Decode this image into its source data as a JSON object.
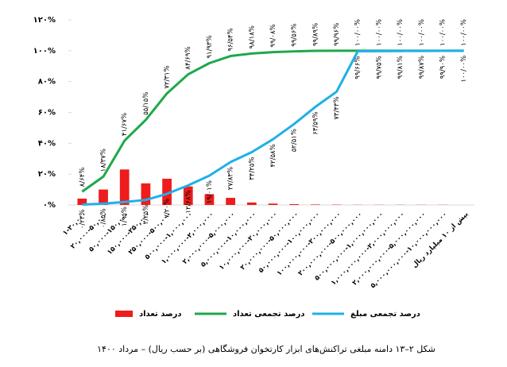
{
  "chart_data": {
    "type": "combo",
    "title": "شکل ۲–۱۳ دامنه مبلغی تراکنش‌های ابزار کارتخوان فروشگاهی (بر حسب ریال) – مرداد ۱۴۰۰",
    "categories": [
      "۱-۲۰,۰۰۰",
      "۲۰,۰۰۰-۵۰,۰۰۰",
      "۵۰,۰۰۰-۱۵۰,۰۰۰",
      "۱۵۰,۰۰۰-۲۵۰,۰۰۰",
      "۲۵۰,۰۰۰-۵۰۰,۰۰۰",
      "۵۰۰,۰۰۰-۱,۰۰۰,۰۰۰",
      "۱,۰۰۰,۰۰۰-۲,۰۰۰,۰۰۰",
      "۲,۰۰۰,۰۰۰-۵,۰۰۰,۰۰۰",
      "۵,۰۰۰,۰۰۰-۱۰,۰۰۰,۰۰۰",
      "۱۰,۰۰۰,۰۰۰-۲۰,۰۰۰,۰۰۰",
      "۲۰,۰۰۰,۰۰۰-۵۰,۰۰۰,۰۰۰",
      "۵۰,۰۰۰,۰۰۰-۱۰۰,۰۰۰,۰۰۰",
      "۱۰۰,۰۰۰,۰۰۰-۲۰۰,۰۰۰,۰۰۰",
      "۲۰۰,۰۰۰,۰۰۰-۵۰۰,۰۰۰,۰۰۰",
      "۵۰۰,۰۰۰,۰۰۰-۱,۰۰۰,۰۰۰,۰۰۰",
      "۱,۰۰۰,۰۰۰,۰۰۰-۲,۰۰۰,۰۰۰,۰۰۰",
      "۲,۰۰۰,۰۰۰,۰۰۰-۵,۰۰۰,۰۰۰,۰۰۰",
      "۵,۰۰۰,۰۰۰,۰۰۰-۱۰,۰۰۰,۰۰۰,۰۰۰",
      "بیش از ۱۰ میلیارد ریال"
    ],
    "ylim": [
      0,
      120
    ],
    "yticks": [
      {
        "value": 0,
        "label": "۰%"
      },
      {
        "value": 20,
        "label": "۲۰%"
      },
      {
        "value": 40,
        "label": "۴۰%"
      },
      {
        "value": 60,
        "label": "۶۰%"
      },
      {
        "value": 80,
        "label": "۸۰%"
      },
      {
        "value": 100,
        "label": "۱۰۰%"
      },
      {
        "value": 120,
        "label": "۱۲۰%"
      }
    ],
    "series": [
      {
        "name": "درصد تعداد",
        "type": "bar",
        "color": "#ee1c1c",
        "values": [
          4.1,
          10,
          23,
          14,
          17,
          12,
          7,
          4.6,
          1.6,
          0.9,
          0.5,
          0.3,
          0.2,
          0.1,
          0.1,
          0.1,
          0.1,
          0.1,
          0
        ]
      },
      {
        "name": "درصد تجمعی تعداد",
        "type": "line",
        "color": "#1ea84a",
        "values": [
          8.64,
          18.37,
          41.67,
          55.15,
          72.31,
          84.69,
          91.93,
          96.54,
          98.18,
          99.08,
          99.56,
          99.89,
          99.96,
          100,
          100,
          100,
          100,
          100,
          100
        ],
        "value_labels": [
          "۸/۶۴%",
          "۱۸/۳۷%",
          "۴۱/۶۷%",
          "۵۵/۱۵%",
          "۷۲/۳۱%",
          "۸۴/۶۹%",
          "۹۱/۹۳%",
          "۹۶/۵۴%",
          "۹۸/۱۸%",
          "۹۹/۰۸%",
          "۹۹/۵۶%",
          "۹۹/۸۹%",
          "۹۹/۹۶%",
          "۱۰۰/۰۰%",
          "۱۰۰/۰۰%",
          "۱۰۰/۰۰%",
          "۱۰۰/۰۰%",
          "۱۰۰/۰۰%",
          "۱۰۰/۰۰%"
        ]
      },
      {
        "name": "درصد تجمعی مبلغ",
        "type": "line",
        "color": "#1fb0e8",
        "values": [
          0.23,
          0.85,
          1.95,
          3.25,
          7.2,
          12.68,
          19.01,
          27.83,
          34.25,
          42.58,
          52.51,
          63.59,
          73.43,
          99.66,
          99.75,
          99.81,
          99.87,
          99.9,
          100
        ],
        "value_labels": [
          "۰/۲۳%",
          "۰/۸۵%",
          "۱/۹۵%",
          "۳/۲۵%",
          "۷/۲۰%",
          "۱۲/۶۸%",
          "۱۹/۰۱%",
          "۲۷/۸۳%",
          "۳۴/۲۵%",
          "۴۲/۵۸%",
          "۵۲/۵۱%",
          "۶۳/۵۹%",
          "۷۳/۴۳%",
          "۹۹/۶۶%",
          "۹۹/۷۵%",
          "۹۹/۸۱%",
          "۹۹/۸۷%",
          "۹۹/۹۰%",
          "۱۰۰/۰۰%"
        ]
      }
    ]
  }
}
